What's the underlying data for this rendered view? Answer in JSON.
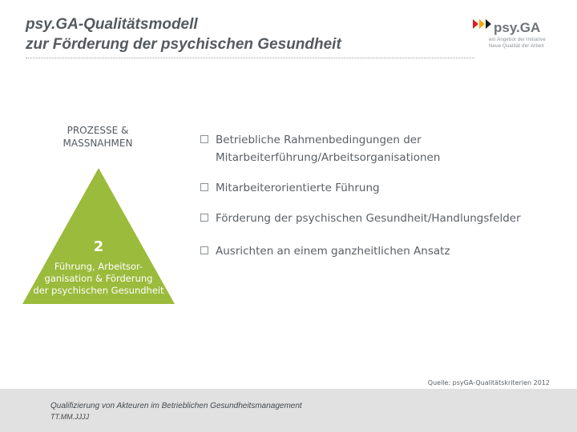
{
  "header": {
    "title_line1": "psy.GA-Qualitätsmodell",
    "title_line2": "zur Förderung der psychischen Gesundheit"
  },
  "logo": {
    "wordmark": "psy.GA",
    "line1": "ein Angebot der Initiative",
    "line2": "Neue Qualität der Arbeit",
    "arrow_colors": [
      "#d2232a",
      "#f5a800",
      "#1f1f1f"
    ],
    "icon": "triple-arrow-icon"
  },
  "model": {
    "section_label": "PROZESSE &\nMASSNAHMEN",
    "triangle_color": "#9bbb3c",
    "number": "2",
    "caption": "Führung, Arbeitsor-\nganisation & Förderung\nder psychischen Gesundheit"
  },
  "bullets": [
    {
      "text": "Betriebliche Rahmenbedingungen der\nMitarbeiterführung/Arbeitsorganisationen"
    },
    {
      "text": "Mitarbeiterorientierte Führung"
    },
    {
      "text": "Förderung der psychischen Gesundheit/Handlungsfelder"
    },
    {
      "text": "Ausrichten an einem ganzheitlichen Ansatz"
    }
  ],
  "source": "Quelle: psyGA-Qualitätskriterien 2012",
  "footer": {
    "title": "Qualifizierung von Akteuren im Betrieblichen Gesundheitsmanagement",
    "date": "TT.MM.JJJJ"
  }
}
